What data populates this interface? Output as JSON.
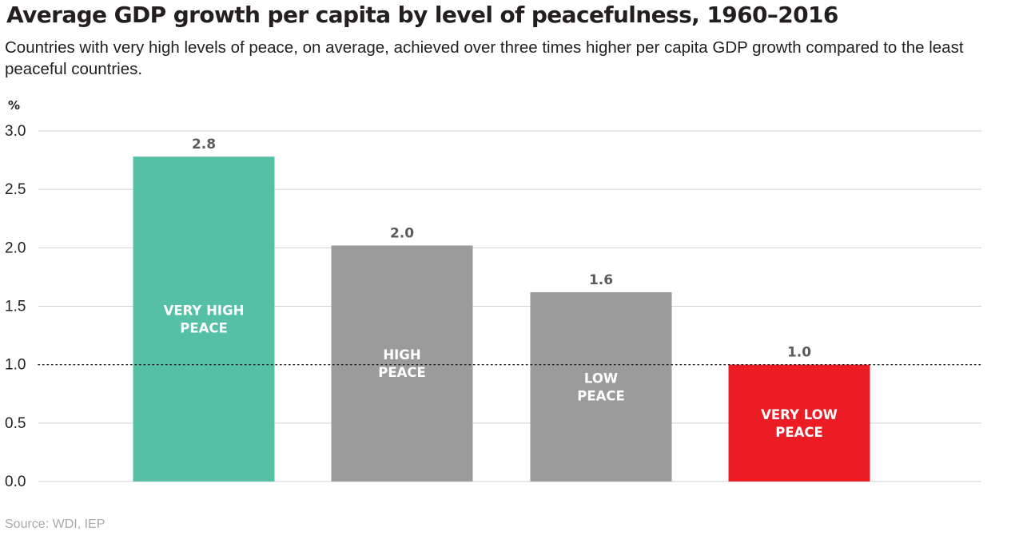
{
  "chart_title": "Average GDP growth per capita by level of peacefulness, 1960–2016",
  "chart_subtitle": "Countries with very high levels of peace, on average, achieved over three times higher per capita GDP growth compared to the least peaceful countries.",
  "source": "Source: WDI, IEP",
  "chart_data": {
    "type": "bar",
    "title": "Average GDP growth per capita by level of peacefulness, 1960–2016",
    "ylabel": "%",
    "xlabel": "",
    "ylim": [
      0,
      3.0
    ],
    "yticks": [
      "0.0",
      "0.5",
      "1.0",
      "1.5",
      "2.0",
      "2.5",
      "3.0"
    ],
    "grid": true,
    "reference_line": 1.0,
    "categories": [
      [
        "VERY HIGH",
        "PEACE"
      ],
      [
        "HIGH",
        "PEACE"
      ],
      [
        "LOW",
        "PEACE"
      ],
      [
        "VERY LOW",
        "PEACE"
      ]
    ],
    "values": [
      2.78,
      2.02,
      1.62,
      1.0
    ],
    "value_labels": [
      "2.8",
      "2.0",
      "1.6",
      "1.0"
    ],
    "colors": [
      "#55c0a6",
      "#9b9b9b",
      "#9b9b9b",
      "#ec1c24"
    ]
  }
}
